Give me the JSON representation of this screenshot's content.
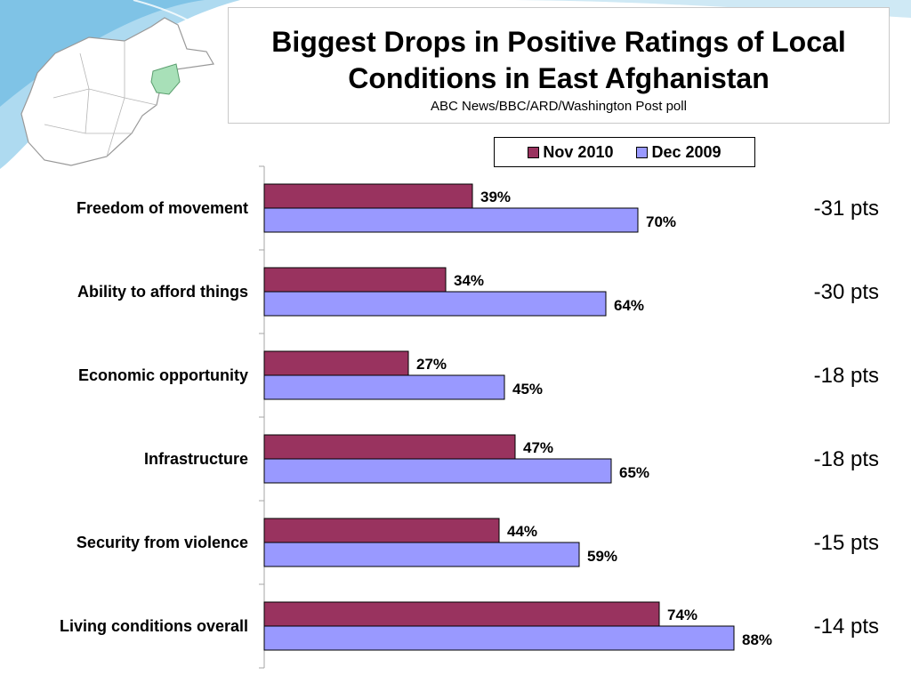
{
  "header": {
    "title": "Biggest Drops in Positive Ratings of Local Conditions in East Afghanistan",
    "subtitle": "ABC News/BBC/ARD/Washington Post poll"
  },
  "colors": {
    "nov_2010": "#99335f",
    "dec_2009": "#9999ff",
    "map_fill": "#ffffff",
    "map_highlight": "#a8e0b8",
    "background_wave": "#7fc6e8"
  },
  "chart_data": {
    "type": "bar",
    "orientation": "horizontal",
    "title": "Biggest Drops in Positive Ratings of Local Conditions in East Afghanistan",
    "subtitle": "ABC News/BBC/ARD/Washington Post poll",
    "categories": [
      "Freedom of movement",
      "Ability to afford things",
      "Economic opportunity",
      "Infrastructure",
      "Security from violence",
      "Living conditions overall"
    ],
    "series": [
      {
        "name": "Nov 2010",
        "values": [
          39,
          34,
          27,
          47,
          44,
          74
        ],
        "labels": [
          "39%",
          "34%",
          "27%",
          "47%",
          "44%",
          "74%"
        ]
      },
      {
        "name": "Dec 2009",
        "values": [
          70,
          64,
          45,
          65,
          59,
          88
        ],
        "labels": [
          "70%",
          "64%",
          "45%",
          "65%",
          "59%",
          "88%"
        ]
      }
    ],
    "annotations": [
      "-31 pts",
      "-30 pts",
      "-18 pts",
      "-18 pts",
      "-15 pts",
      "-14 pts"
    ],
    "xlim": [
      0,
      100
    ],
    "legend_position": "top",
    "grid": false
  }
}
